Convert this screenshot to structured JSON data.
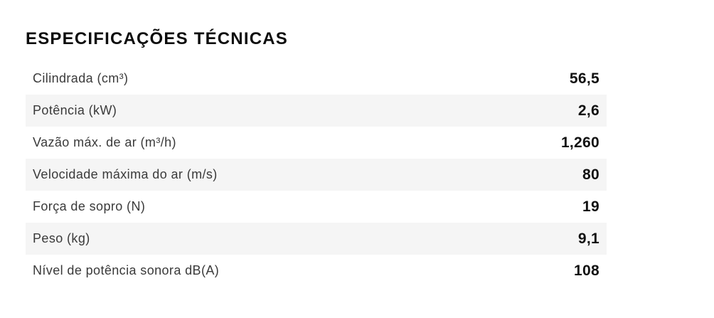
{
  "header": {
    "title": "ESPECIFICAÇÕES TÉCNICAS"
  },
  "table": {
    "rows": [
      {
        "label": "Cilindrada (cm³)",
        "value": "56,5"
      },
      {
        "label": "Potência (kW)",
        "value": "2,6"
      },
      {
        "label": "Vazão máx. de ar (m³/h)",
        "value": "1,260"
      },
      {
        "label": "Velocidade máxima do ar (m/s)",
        "value": "80"
      },
      {
        "label": "Força de sopro (N)",
        "value": "19"
      },
      {
        "label": "Peso (kg)",
        "value": "9,1"
      },
      {
        "label": "Nível de potência sonora dB(A)",
        "value": "108"
      }
    ]
  },
  "colors": {
    "page-bg": "#ffffff",
    "row-alt-bg": "#f5f5f5",
    "title-color": "#0d0d0d",
    "label-color": "#3a3a3a",
    "value-color": "#111111"
  }
}
